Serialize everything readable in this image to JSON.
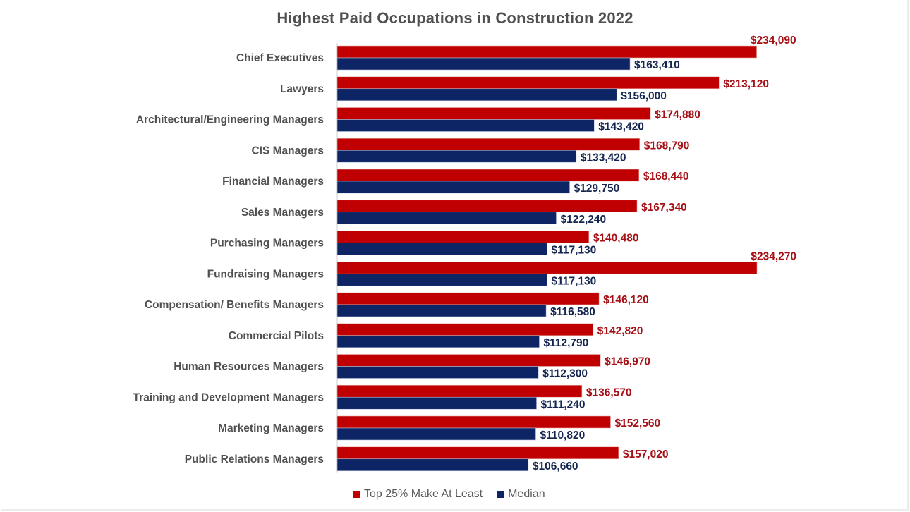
{
  "chart_data": {
    "type": "bar",
    "orientation": "horizontal",
    "title": "Highest Paid Occupations in Construction  2022",
    "xlabel": "",
    "ylabel": "",
    "xlim": [
      0,
      250000
    ],
    "grid": false,
    "legend_position": "bottom",
    "categories": [
      "Chief Executives",
      "Lawyers",
      "Architectural/Engineering Managers",
      "CIS Managers",
      "Financial Managers",
      "Sales Managers",
      "Purchasing Managers",
      "Fundraising Managers",
      "Compensation/ Benefits Managers",
      "Commercial Pilots",
      "Human Resources Managers",
      "Training and Development Managers",
      "Marketing Managers",
      "Public Relations Managers"
    ],
    "series": [
      {
        "name": "Top 25% Make At Least",
        "color": "#c00000",
        "label_color": "#a50f15",
        "values": [
          234090,
          213120,
          174880,
          168790,
          168440,
          167340,
          140480,
          234270,
          146120,
          142820,
          146970,
          136570,
          152560,
          157020
        ],
        "labels": [
          "$234,090",
          "$213,120",
          "$174,880",
          "$168,790",
          "$168,440",
          "$167,340",
          "$140,480",
          "$234,270",
          "$146,120",
          "$142,820",
          "$146,970",
          "$136,570",
          "$152,560",
          "$157,020"
        ]
      },
      {
        "name": "Median",
        "color": "#0e2565",
        "label_color": "#14254f",
        "values": [
          163410,
          156000,
          143420,
          133420,
          129750,
          122240,
          117130,
          117130,
          116580,
          112790,
          112300,
          111240,
          110820,
          106660
        ],
        "labels": [
          "$163,410",
          "$156,000",
          "$143,420",
          "$133,420",
          "$129,750",
          "$122,240",
          "$117,130",
          "$117,130",
          "$116,580",
          "$112,790",
          "$112,300",
          "$111,240",
          "$110,820",
          "$106,660"
        ]
      }
    ]
  }
}
